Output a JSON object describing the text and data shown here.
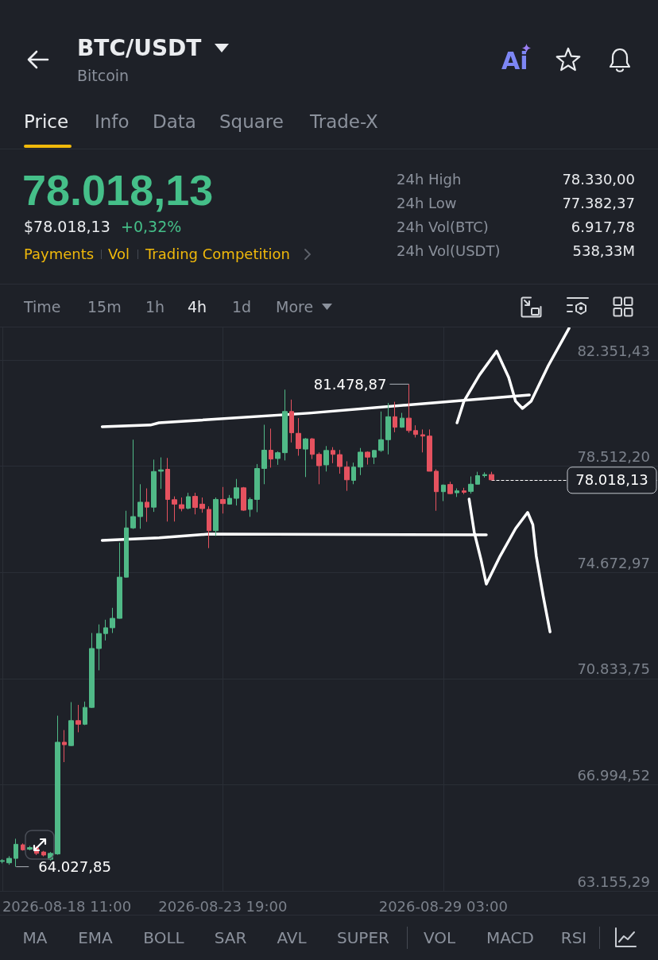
{
  "chart_data": {
    "type": "candlestick",
    "title": "BTC/USDT",
    "subtitle": "Bitcoin",
    "x": [
      "2026-08-18T11:00",
      "2026-08-18T15:00",
      "2026-08-18T19:00",
      "2026-08-18T23:00",
      "2026-08-19T03:00",
      "2026-08-19T07:00",
      "2026-08-19T11:00",
      "2026-08-19T15:00",
      "2026-08-19T19:00",
      "2026-08-19T23:00",
      "2026-08-20T03:00",
      "2026-08-20T07:00",
      "2026-08-20T11:00",
      "2026-08-20T15:00",
      "2026-08-20T19:00",
      "2026-08-20T23:00",
      "2026-08-21T03:00",
      "2026-08-21T07:00",
      "2026-08-21T11:00",
      "2026-08-21T15:00",
      "2026-08-21T19:00",
      "2026-08-21T23:00",
      "2026-08-22T03:00",
      "2026-08-22T07:00",
      "2026-08-22T11:00",
      "2026-08-22T15:00",
      "2026-08-22T19:00",
      "2026-08-22T23:00",
      "2026-08-23T03:00",
      "2026-08-23T07:00",
      "2026-08-23T11:00",
      "2026-08-23T15:00",
      "2026-08-23T19:00",
      "2026-08-23T23:00",
      "2026-08-24T03:00",
      "2026-08-24T07:00",
      "2026-08-24T11:00",
      "2026-08-24T15:00",
      "2026-08-24T19:00",
      "2026-08-24T23:00",
      "2026-08-25T03:00",
      "2026-08-25T07:00",
      "2026-08-25T11:00",
      "2026-08-25T15:00",
      "2026-08-25T19:00",
      "2026-08-25T23:00",
      "2026-08-26T03:00",
      "2026-08-26T07:00",
      "2026-08-26T11:00",
      "2026-08-26T15:00",
      "2026-08-26T19:00",
      "2026-08-26T23:00",
      "2026-08-27T03:00",
      "2026-08-27T07:00",
      "2026-08-27T11:00",
      "2026-08-27T15:00",
      "2026-08-27T19:00",
      "2026-08-27T23:00",
      "2026-08-28T03:00",
      "2026-08-28T07:00",
      "2026-08-28T11:00",
      "2026-08-28T15:00",
      "2026-08-28T19:00",
      "2026-08-28T23:00",
      "2026-08-29T03:00",
      "2026-08-29T07:00",
      "2026-08-29T11:00",
      "2026-08-29T15:00",
      "2026-08-29T19:00",
      "2026-08-29T23:00",
      "2026-08-30T03:00",
      "2026-08-30T07:00"
    ],
    "ohlc": [
      [
        64220,
        64300,
        64150,
        64250
      ],
      [
        64170,
        64410,
        64100,
        64330
      ],
      [
        64330,
        65040,
        64027.85,
        64840
      ],
      [
        64820,
        64870,
        64610,
        64640
      ],
      [
        64660,
        64780,
        64620,
        64720
      ],
      [
        64710,
        64760,
        64450,
        64510
      ],
      [
        64560,
        64600,
        64400,
        64450
      ],
      [
        64300,
        64560,
        64250,
        64510
      ],
      [
        64490,
        69490,
        64460,
        68530
      ],
      [
        68530,
        68970,
        67810,
        68440
      ],
      [
        68410,
        69980,
        68390,
        69310
      ],
      [
        69310,
        69880,
        68890,
        69180
      ],
      [
        69180,
        70000,
        69150,
        69790
      ],
      [
        69790,
        72480,
        69770,
        71920
      ],
      [
        71920,
        72790,
        71130,
        72460
      ],
      [
        72460,
        72960,
        72210,
        72670
      ],
      [
        72670,
        73390,
        72480,
        73010
      ],
      [
        73010,
        75750,
        73000,
        74500
      ],
      [
        74500,
        76900,
        74480,
        76280
      ],
      [
        76280,
        79470,
        76240,
        76690
      ],
      [
        76690,
        77860,
        76250,
        77210
      ],
      [
        77210,
        77710,
        76500,
        77030
      ],
      [
        77030,
        78750,
        76860,
        78320
      ],
      [
        78330,
        78830,
        77690,
        78380
      ],
      [
        78400,
        78810,
        76510,
        77310
      ],
      [
        77300,
        77420,
        76510,
        77140
      ],
      [
        77120,
        77380,
        76880,
        76980
      ],
      [
        76990,
        77550,
        76950,
        77410
      ],
      [
        77420,
        77550,
        76770,
        77020
      ],
      [
        77140,
        77380,
        76830,
        76980
      ],
      [
        76950,
        77060,
        75550,
        76180
      ],
      [
        76180,
        77380,
        75990,
        77310
      ],
      [
        77310,
        77760,
        76800,
        77160
      ],
      [
        77140,
        77470,
        77120,
        77350
      ],
      [
        77350,
        78050,
        77090,
        77730
      ],
      [
        77730,
        77760,
        76900,
        76920
      ],
      [
        76950,
        77380,
        76680,
        77310
      ],
      [
        77310,
        78590,
        76850,
        78430
      ],
      [
        78430,
        80010,
        77860,
        79090
      ],
      [
        79090,
        79870,
        78460,
        78770
      ],
      [
        78790,
        79050,
        78560,
        79000
      ],
      [
        79000,
        81280,
        78720,
        80490
      ],
      [
        80490,
        80920,
        79370,
        79720
      ],
      [
        79700,
        80250,
        78890,
        79150
      ],
      [
        79130,
        79530,
        78120,
        79500
      ],
      [
        79500,
        79530,
        78770,
        78940
      ],
      [
        78940,
        79010,
        77860,
        78530
      ],
      [
        78560,
        79240,
        78320,
        79080
      ],
      [
        79080,
        79200,
        78620,
        78940
      ],
      [
        78930,
        79100,
        78240,
        78500
      ],
      [
        78480,
        78690,
        77620,
        78020
      ],
      [
        78000,
        78640,
        77860,
        78480
      ],
      [
        78480,
        79170,
        78190,
        79020
      ],
      [
        79020,
        79050,
        78570,
        78840
      ],
      [
        78840,
        79100,
        78590,
        79080
      ],
      [
        79080,
        80490,
        79030,
        79470
      ],
      [
        79470,
        80800,
        78940,
        80300
      ],
      [
        80300,
        80840,
        79740,
        79920
      ],
      [
        79920,
        80440,
        79900,
        80250
      ],
      [
        80250,
        81478.87,
        79720,
        79800
      ],
      [
        79800,
        79990,
        79550,
        79660
      ],
      [
        79650,
        79840,
        79010,
        79600
      ],
      [
        79600,
        79840,
        78330,
        78330
      ],
      [
        78330,
        78400,
        76900,
        77590
      ],
      [
        77590,
        77850,
        77250,
        77830
      ],
      [
        77850,
        77950,
        77500,
        77520
      ],
      [
        77550,
        77710,
        77400,
        77620
      ],
      [
        77620,
        77730,
        77500,
        77570
      ],
      [
        77600,
        78140,
        77520,
        77860
      ],
      [
        77860,
        78310,
        77850,
        78170
      ],
      [
        78170,
        78290,
        78100,
        78210
      ],
      [
        78210,
        78310,
        78000,
        78018.13
      ]
    ],
    "colors": [
      "#50b987",
      "#50b987",
      "#50b987",
      "#e5525f",
      "#50b987",
      "#e5525f",
      "#e5525f",
      "#50b987",
      "#50b987",
      "#e5525f",
      "#50b987",
      "#e5525f",
      "#50b987",
      "#50b987",
      "#50b987",
      "#50b987",
      "#50b987",
      "#50b987",
      "#50b987",
      "#50b987",
      "#50b987",
      "#e5525f",
      "#50b987",
      "#50b987",
      "#e5525f",
      "#e5525f",
      "#e5525f",
      "#50b987",
      "#e5525f",
      "#e5525f",
      "#e5525f",
      "#50b987",
      "#e5525f",
      "#50b987",
      "#50b987",
      "#e5525f",
      "#50b987",
      "#50b987",
      "#50b987",
      "#e5525f",
      "#50b987",
      "#50b987",
      "#e5525f",
      "#e5525f",
      "#50b987",
      "#e5525f",
      "#e5525f",
      "#50b987",
      "#e5525f",
      "#e5525f",
      "#e5525f",
      "#50b987",
      "#50b987",
      "#e5525f",
      "#50b987",
      "#50b987",
      "#50b987",
      "#e5525f",
      "#50b987",
      "#e5525f",
      "#e5525f",
      "#e5525f",
      "#e5525f",
      "#e5525f",
      "#50b987",
      "#e5525f",
      "#50b987",
      "#e5525f",
      "#50b987",
      "#50b987",
      "#50b987",
      "#e5525f"
    ],
    "series": [
      {
        "type": "line",
        "color": "#ffffff",
        "x": [
          "2026-08-20T21:00",
          "2026-08-22T01:00",
          "2026-08-22T06:00",
          "2026-08-25T21:00",
          "2026-08-31T05:00"
        ],
        "values": [
          79940,
          80000,
          80080,
          80430,
          81090
        ]
      },
      {
        "type": "line",
        "color": "#ffffff",
        "x": [
          "2026-08-20T21:00",
          "2026-08-22T06:00",
          "2026-08-23T11:00",
          "2026-08-30T04:00"
        ],
        "values": [
          75830,
          75920,
          76060,
          76030
        ]
      },
      {
        "type": "line",
        "color": "#ffffff",
        "x": [
          "2026-08-29T11:00",
          "2026-08-29T15:00",
          "2026-08-30T00:00",
          "2026-08-30T10:00",
          "2026-08-30T17:00",
          "2026-08-30T21:00",
          "2026-08-31T01:00",
          "2026-08-31T06:00",
          "2026-08-31T16:00",
          "2026-09-01T04:00"
        ],
        "values": [
          80080,
          80860,
          81810,
          82670,
          81720,
          80860,
          80600,
          80860,
          82150,
          83500
        ]
      },
      {
        "type": "line",
        "color": "#ffffff",
        "x": [
          "2026-08-29T18:00",
          "2026-08-29T21:00",
          "2026-08-30T01:00",
          "2026-08-30T04:00",
          "2026-08-30T12:00",
          "2026-08-30T21:00",
          "2026-08-31T04:00",
          "2026-08-31T07:00",
          "2026-08-31T09:00",
          "2026-08-31T13:00",
          "2026-08-31T17:00"
        ],
        "values": [
          77320,
          76120,
          75110,
          74250,
          75260,
          76260,
          76840,
          76400,
          75260,
          73820,
          72520
        ]
      }
    ],
    "xlim": [
      "2026-08-18T09:40",
      "2026-09-03T07:40"
    ],
    "xticks": [
      {
        "value": "2026-08-18T11:00",
        "label": "2026-08-18 11:00"
      },
      {
        "value": "2026-08-23T19:00",
        "label": "2026-08-23 19:00"
      },
      {
        "value": "2026-08-29T03:00",
        "label": "2026-08-29 03:00"
      }
    ],
    "ylim": [
      63155.29,
      83530
    ],
    "yticks": [
      {
        "value": 63155.29,
        "label": "63.155,29"
      },
      {
        "value": 66994.52,
        "label": "66.994,52"
      },
      {
        "value": 70833.75,
        "label": "70.833,75"
      },
      {
        "value": 74672.97,
        "label": "74.672,97"
      },
      {
        "value": 78512.2,
        "label": "78.512,20"
      },
      {
        "value": 82351.43,
        "label": "82.351,43"
      }
    ],
    "grid": true,
    "marker": "none",
    "ref_lines": [
      {
        "axis": "y",
        "value": 78018.13,
        "label": "78.018,13",
        "line_style": "dashed",
        "color": "#ffffff"
      }
    ],
    "annotations": [
      "Price",
      "Info",
      "Data",
      "Square",
      "Trade-X",
      "78.018,13",
      "$78.018,13",
      "+0,32%",
      "Payments",
      "Vol",
      "Trading Competition",
      "24h High",
      "78.330,00",
      "24h Low",
      "77.382,37",
      "24h Vol(BTC)",
      "6.917,78",
      "24h Vol(USDT)",
      "538,33M",
      "Time",
      "15m",
      "1h",
      "4h",
      "1d",
      "More",
      "Ai",
      "MA",
      "EMA",
      "BOLL",
      "SAR",
      "AVL",
      "SUPER",
      "VOL",
      "MACD",
      "RSI",
      {
        "text": "81.478,87",
        "x": "2026-08-28T07:00",
        "y": 81478.87
      },
      {
        "text": "64.027,85",
        "x": "2026-08-18T19:00",
        "y": 64027.85
      }
    ]
  }
}
